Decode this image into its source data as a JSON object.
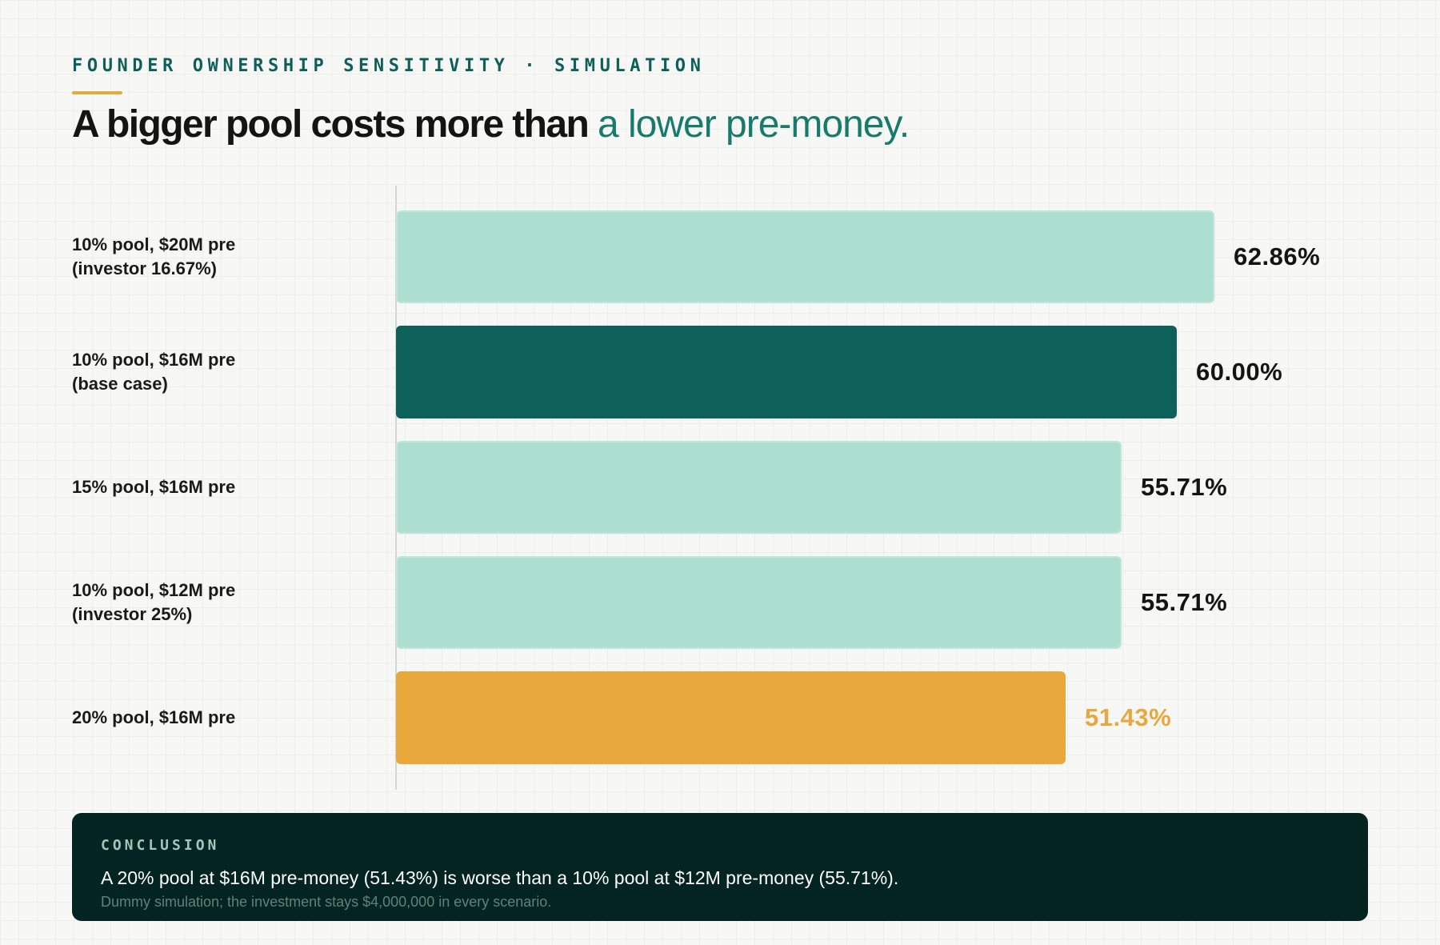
{
  "header": {
    "eyebrow": "FOUNDER OWNERSHIP SENSITIVITY · SIMULATION",
    "title_main": "A bigger pool costs more than",
    "title_accent": "a lower pre-money."
  },
  "chart_data": {
    "type": "bar",
    "orientation": "horizontal",
    "title": "A bigger pool costs more than a lower pre-money.",
    "xlim": [
      0,
      70
    ],
    "grid": false,
    "categories": [
      [
        "10% pool, $20M pre",
        "(investor 16.67%)"
      ],
      [
        "10% pool, $16M pre",
        "(base case)"
      ],
      [
        "15% pool, $16M pre"
      ],
      [
        "10% pool, $12M pre",
        "(investor 25%)"
      ],
      [
        "20% pool, $16M pre"
      ]
    ],
    "values": [
      62.86,
      60.0,
      55.71,
      55.71,
      51.43
    ],
    "value_labels": [
      "62.86%",
      "60.00%",
      "55.71%",
      "55.71%",
      "51.43%"
    ],
    "highlight": [
      "light",
      "base",
      "light",
      "light",
      "warn"
    ],
    "colors": {
      "light": "#addfd1",
      "base": "#0d615a",
      "warn": "#e9a83c",
      "label_dark": "#141414",
      "label_warn": "#e8a83d"
    }
  },
  "conclusion": {
    "label": "CONCLUSION",
    "text": "A 20% pool at $16M pre-money (51.43%) is worse than a 10% pool at $12M pre-money (55.71%).",
    "note": "Dummy simulation; the investment stays $4,000,000 in every scenario."
  }
}
